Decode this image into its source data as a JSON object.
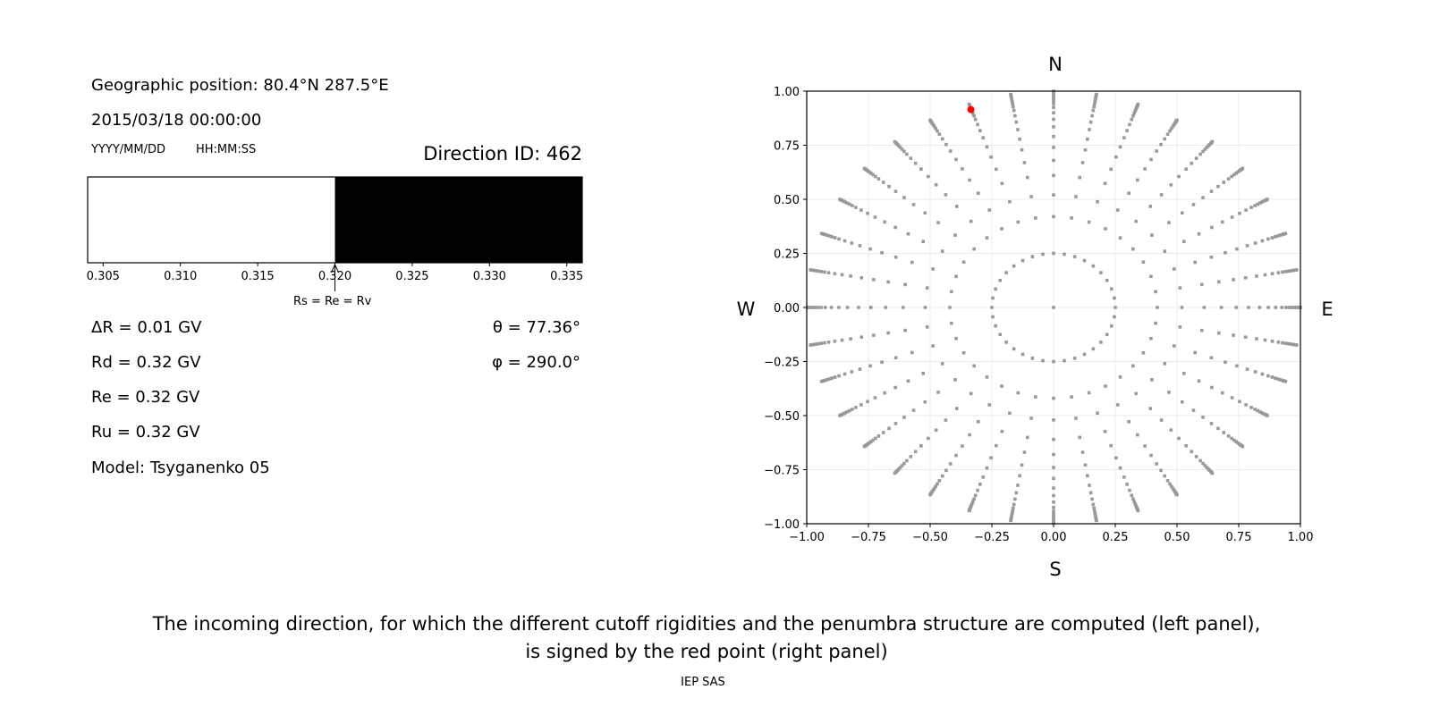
{
  "left_panel": {
    "geo_position": "Geographic position: 80.4°N 287.5°E",
    "datetime": "2015/03/18 00:00:00",
    "date_format": "YYYY/MM/DD",
    "time_format": "HH:MM:SS",
    "direction_id": "Direction ID: 462",
    "delta_r": "ΔR = 0.01 GV",
    "rd": "Rd = 0.32 GV",
    "re": "Re = 0.32 GV",
    "ru": "Ru = 0.32 GV",
    "model": "Model: Tsyganenko 05",
    "theta": "θ = 77.36°",
    "phi": "φ = 290.0°",
    "arrow_label": "Rs = Re = Rv"
  },
  "caption": {
    "line1": "The incoming direction, for which the different cutoff rigidities and the penumbra structure are computed (left panel),",
    "line2": "is signed by the red point (right panel)",
    "credit": "IEP SAS"
  },
  "chart_data": [
    {
      "type": "bar",
      "name": "penumbra",
      "xlim": [
        0.304,
        0.336
      ],
      "xticks": [
        "0.305",
        "0.310",
        "0.315",
        "0.320",
        "0.325",
        "0.330",
        "0.335"
      ],
      "segments": [
        {
          "from": 0.304,
          "to": 0.32,
          "color": "#ffffff",
          "state": "forbidden"
        },
        {
          "from": 0.32,
          "to": 0.336,
          "color": "#000000",
          "state": "allowed"
        }
      ],
      "arrow_at": 0.32
    },
    {
      "type": "scatter",
      "xlim": [
        -1,
        1
      ],
      "ylim": [
        -1,
        1
      ],
      "xticks": [
        "−1.00",
        "−0.75",
        "−0.50",
        "−0.25",
        "0.00",
        "0.25",
        "0.50",
        "0.75",
        "1.00"
      ],
      "yticks": [
        "−1.00",
        "−0.75",
        "−0.50",
        "−0.25",
        "0.00",
        "0.25",
        "0.50",
        "0.75",
        "1.00"
      ],
      "grid": true,
      "compass": {
        "n": "N",
        "s": "S",
        "w": "W",
        "e": "E"
      },
      "point_color": "#999999",
      "directions": {
        "center": [
          0,
          0
        ],
        "inner_ring_radius": 0.25,
        "inner_ring_points": 36,
        "azimuth_step_deg": 10,
        "ray_radii": [
          0.42,
          0.52,
          0.61,
          0.68,
          0.74,
          0.79,
          0.835,
          0.87,
          0.9,
          0.925,
          0.942,
          0.955,
          0.966,
          0.975,
          0.983,
          0.99,
          0.995,
          1.0
        ]
      },
      "highlight": {
        "x": -0.335,
        "y": 0.915,
        "color": "#ff0000"
      }
    }
  ]
}
